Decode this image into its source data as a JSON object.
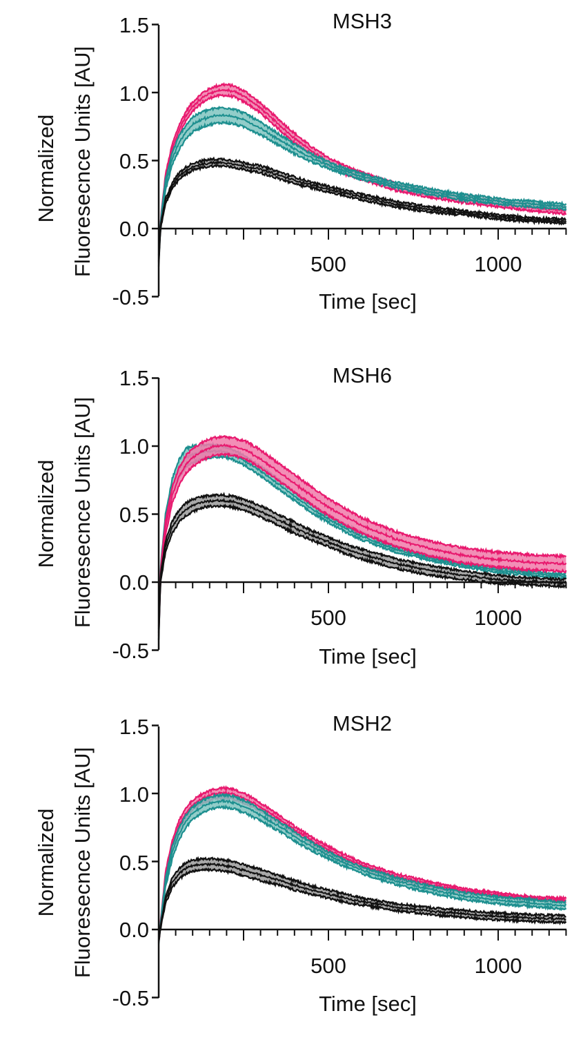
{
  "colors": {
    "magenta": "#e8196e",
    "magenta_band": "#f07aa9",
    "teal": "#1d8f8f",
    "teal_band": "#7fc4c0",
    "black": "#111111",
    "black_band": "#9a9a9a"
  },
  "chart_data": [
    {
      "type": "area",
      "title": "MSH3",
      "xlabel": "Time [sec]",
      "ylabel_line1": "Normalized",
      "ylabel_line2": "Fluoresecnce Units [AU]",
      "xlim": [
        0,
        1200
      ],
      "ylim": [
        -0.5,
        1.5
      ],
      "xticks": [
        500,
        1000
      ],
      "yticks": [
        "1.5",
        "1.0",
        "0.5",
        "0.0",
        "-0.5"
      ],
      "series": [
        {
          "name": "magenta",
          "color_key": "magenta",
          "x": [
            0,
            5,
            20,
            40,
            60,
            80,
            100,
            130,
            160,
            190,
            220,
            260,
            300,
            350,
            400,
            450,
            500,
            550,
            600,
            700,
            800,
            900,
            1000,
            1100,
            1200
          ],
          "upper": [
            -0.2,
            0.05,
            0.4,
            0.62,
            0.76,
            0.86,
            0.93,
            1.0,
            1.04,
            1.06,
            1.05,
            1.0,
            0.92,
            0.81,
            0.7,
            0.6,
            0.52,
            0.46,
            0.41,
            0.33,
            0.28,
            0.24,
            0.21,
            0.18,
            0.16
          ],
          "lower": [
            -0.24,
            0.0,
            0.34,
            0.55,
            0.69,
            0.79,
            0.86,
            0.93,
            0.97,
            0.98,
            0.97,
            0.92,
            0.85,
            0.74,
            0.63,
            0.54,
            0.46,
            0.4,
            0.36,
            0.28,
            0.23,
            0.19,
            0.16,
            0.13,
            0.11
          ]
        },
        {
          "name": "teal",
          "color_key": "teal",
          "x": [
            0,
            5,
            20,
            40,
            60,
            80,
            100,
            130,
            160,
            190,
            220,
            260,
            300,
            350,
            400,
            450,
            500,
            550,
            600,
            700,
            800,
            900,
            1000,
            1100,
            1200
          ],
          "upper": [
            -0.2,
            0.04,
            0.36,
            0.56,
            0.68,
            0.76,
            0.82,
            0.86,
            0.88,
            0.89,
            0.88,
            0.84,
            0.78,
            0.7,
            0.62,
            0.55,
            0.49,
            0.44,
            0.4,
            0.34,
            0.29,
            0.25,
            0.22,
            0.2,
            0.18
          ],
          "lower": [
            -0.24,
            -0.01,
            0.28,
            0.47,
            0.58,
            0.66,
            0.71,
            0.75,
            0.77,
            0.78,
            0.77,
            0.74,
            0.69,
            0.62,
            0.55,
            0.49,
            0.44,
            0.4,
            0.36,
            0.3,
            0.25,
            0.21,
            0.18,
            0.16,
            0.14
          ]
        },
        {
          "name": "black",
          "color_key": "black",
          "x": [
            0,
            5,
            20,
            40,
            60,
            80,
            100,
            130,
            160,
            190,
            220,
            260,
            300,
            350,
            400,
            450,
            500,
            550,
            600,
            700,
            800,
            900,
            1000,
            1100,
            1200
          ],
          "upper": [
            -0.24,
            0.02,
            0.22,
            0.34,
            0.41,
            0.45,
            0.48,
            0.5,
            0.51,
            0.51,
            0.5,
            0.48,
            0.46,
            0.42,
            0.38,
            0.34,
            0.31,
            0.28,
            0.25,
            0.2,
            0.16,
            0.13,
            0.1,
            0.08,
            0.07
          ],
          "lower": [
            -0.27,
            -0.01,
            0.18,
            0.29,
            0.36,
            0.4,
            0.43,
            0.45,
            0.46,
            0.46,
            0.45,
            0.43,
            0.41,
            0.37,
            0.33,
            0.3,
            0.27,
            0.24,
            0.21,
            0.16,
            0.12,
            0.1,
            0.07,
            0.05,
            0.04
          ]
        }
      ]
    },
    {
      "type": "area",
      "title": "MSH6",
      "xlabel": "Time [sec]",
      "ylabel_line1": "Normalized",
      "ylabel_line2": "Fluoresecnce Units [AU]",
      "xlim": [
        0,
        1200
      ],
      "ylim": [
        -0.5,
        1.5
      ],
      "xticks": [
        500,
        1000
      ],
      "yticks": [
        "1.5",
        "1.0",
        "0.5",
        "0.0",
        "-0.5"
      ],
      "series": [
        {
          "name": "teal",
          "color_key": "teal",
          "x": [
            0,
            5,
            20,
            40,
            60,
            80,
            100,
            130,
            160,
            190,
            220,
            260,
            300,
            350,
            400,
            450,
            500,
            550,
            600,
            700,
            800,
            900,
            1000,
            1100,
            1200
          ],
          "upper": [
            -0.35,
            0.1,
            0.5,
            0.76,
            0.9,
            0.98,
            1.0,
            1.01,
            1.01,
            1.0,
            0.97,
            0.92,
            0.85,
            0.76,
            0.66,
            0.57,
            0.49,
            0.42,
            0.36,
            0.26,
            0.19,
            0.14,
            0.1,
            0.08,
            0.06
          ],
          "lower": [
            -0.42,
            0.02,
            0.4,
            0.64,
            0.77,
            0.85,
            0.88,
            0.91,
            0.92,
            0.92,
            0.9,
            0.85,
            0.78,
            0.69,
            0.6,
            0.51,
            0.44,
            0.37,
            0.31,
            0.22,
            0.16,
            0.11,
            0.07,
            0.05,
            0.03
          ]
        },
        {
          "name": "magenta",
          "color_key": "magenta",
          "x": [
            0,
            5,
            20,
            40,
            60,
            80,
            100,
            130,
            160,
            190,
            220,
            260,
            300,
            350,
            400,
            450,
            500,
            550,
            600,
            700,
            800,
            900,
            1000,
            1100,
            1200
          ],
          "upper": [
            -0.33,
            0.08,
            0.45,
            0.7,
            0.84,
            0.93,
            0.98,
            1.03,
            1.06,
            1.07,
            1.06,
            1.03,
            0.97,
            0.88,
            0.79,
            0.7,
            0.61,
            0.54,
            0.47,
            0.37,
            0.3,
            0.25,
            0.22,
            0.2,
            0.19
          ],
          "lower": [
            -0.4,
            0.0,
            0.35,
            0.58,
            0.71,
            0.8,
            0.85,
            0.9,
            0.93,
            0.94,
            0.93,
            0.9,
            0.84,
            0.75,
            0.66,
            0.57,
            0.49,
            0.42,
            0.36,
            0.26,
            0.19,
            0.14,
            0.11,
            0.09,
            0.08
          ]
        },
        {
          "name": "black",
          "color_key": "black",
          "x": [
            0,
            5,
            20,
            40,
            60,
            80,
            100,
            130,
            160,
            190,
            220,
            260,
            300,
            350,
            400,
            450,
            500,
            550,
            600,
            700,
            800,
            900,
            1000,
            1100,
            1200
          ],
          "upper": [
            -0.37,
            0.05,
            0.3,
            0.45,
            0.53,
            0.58,
            0.61,
            0.63,
            0.64,
            0.64,
            0.63,
            0.6,
            0.56,
            0.5,
            0.44,
            0.38,
            0.33,
            0.28,
            0.24,
            0.17,
            0.12,
            0.08,
            0.05,
            0.03,
            0.02
          ],
          "lower": [
            -0.42,
            -0.01,
            0.22,
            0.36,
            0.44,
            0.49,
            0.52,
            0.55,
            0.56,
            0.56,
            0.55,
            0.52,
            0.48,
            0.42,
            0.36,
            0.31,
            0.26,
            0.21,
            0.17,
            0.1,
            0.05,
            0.02,
            -0.01,
            -0.02,
            -0.03
          ]
        }
      ]
    },
    {
      "type": "area",
      "title": "MSH2",
      "xlabel": "Time [sec]",
      "ylabel_line1": "Normalized",
      "ylabel_line2": "Fluoresecnce Units [AU]",
      "xlim": [
        0,
        1200
      ],
      "ylim": [
        -0.5,
        1.5
      ],
      "xticks": [
        500,
        1000
      ],
      "yticks": [
        "1.5",
        "1.0",
        "0.5",
        "0.0",
        "-0.5"
      ],
      "series": [
        {
          "name": "magenta",
          "color_key": "magenta",
          "x": [
            0,
            5,
            20,
            40,
            60,
            80,
            100,
            130,
            160,
            190,
            220,
            260,
            300,
            350,
            400,
            450,
            500,
            550,
            600,
            700,
            800,
            900,
            1000,
            1100,
            1200
          ],
          "upper": [
            -0.08,
            0.05,
            0.42,
            0.66,
            0.8,
            0.89,
            0.95,
            1.0,
            1.03,
            1.04,
            1.03,
            0.99,
            0.93,
            0.85,
            0.76,
            0.68,
            0.61,
            0.55,
            0.49,
            0.41,
            0.35,
            0.3,
            0.27,
            0.24,
            0.23
          ],
          "lower": [
            -0.1,
            0.02,
            0.36,
            0.59,
            0.73,
            0.82,
            0.88,
            0.93,
            0.96,
            0.97,
            0.96,
            0.92,
            0.87,
            0.79,
            0.71,
            0.63,
            0.56,
            0.5,
            0.45,
            0.37,
            0.31,
            0.27,
            0.24,
            0.22,
            0.2
          ]
        },
        {
          "name": "teal",
          "color_key": "teal",
          "x": [
            0,
            5,
            20,
            40,
            60,
            80,
            100,
            130,
            160,
            190,
            220,
            260,
            300,
            350,
            400,
            450,
            500,
            550,
            600,
            700,
            800,
            900,
            1000,
            1100,
            1200
          ],
          "upper": [
            -0.08,
            0.04,
            0.38,
            0.61,
            0.75,
            0.84,
            0.9,
            0.95,
            0.98,
            0.99,
            0.98,
            0.94,
            0.88,
            0.8,
            0.72,
            0.64,
            0.57,
            0.51,
            0.46,
            0.38,
            0.32,
            0.27,
            0.24,
            0.22,
            0.2
          ],
          "lower": [
            -0.1,
            0.01,
            0.31,
            0.52,
            0.66,
            0.75,
            0.81,
            0.86,
            0.89,
            0.9,
            0.89,
            0.85,
            0.8,
            0.73,
            0.65,
            0.58,
            0.52,
            0.46,
            0.41,
            0.33,
            0.27,
            0.22,
            0.19,
            0.17,
            0.15
          ]
        },
        {
          "name": "black",
          "color_key": "black",
          "x": [
            0,
            5,
            20,
            40,
            60,
            80,
            100,
            130,
            160,
            190,
            220,
            260,
            300,
            350,
            400,
            450,
            500,
            550,
            600,
            700,
            800,
            900,
            1000,
            1100,
            1200
          ],
          "upper": [
            -0.08,
            0.02,
            0.24,
            0.38,
            0.45,
            0.49,
            0.51,
            0.52,
            0.52,
            0.51,
            0.5,
            0.47,
            0.44,
            0.4,
            0.36,
            0.32,
            0.29,
            0.26,
            0.23,
            0.19,
            0.16,
            0.14,
            0.12,
            0.11,
            0.1
          ],
          "lower": [
            -0.1,
            0.0,
            0.19,
            0.31,
            0.37,
            0.41,
            0.43,
            0.44,
            0.44,
            0.43,
            0.42,
            0.39,
            0.36,
            0.33,
            0.29,
            0.26,
            0.23,
            0.2,
            0.18,
            0.14,
            0.11,
            0.09,
            0.07,
            0.06,
            0.05
          ]
        }
      ]
    }
  ]
}
